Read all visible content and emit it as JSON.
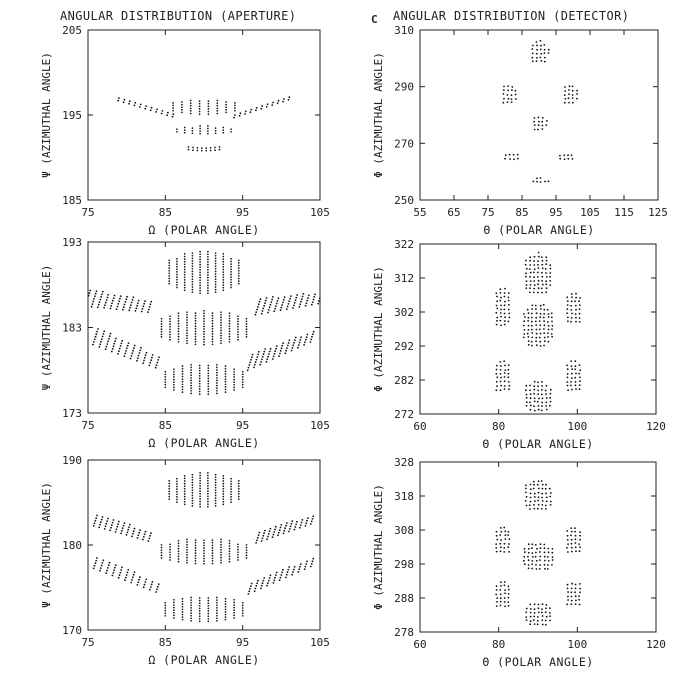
{
  "figure": {
    "left_title": "ANGULAR DISTRIBUTION (APERTURE)",
    "right_title": "ANGULAR DISTRIBUTION (DETECTOR)",
    "panel_letter": "C"
  },
  "chart_data": [
    {
      "type": "scatter",
      "xlabel": "Ω (POLAR ANGLE)",
      "ylabel": "Ψ (AZIMUTHAL ANGLE)",
      "xlim": [
        75,
        105
      ],
      "ylim": [
        185,
        205
      ],
      "xticks": [
        75,
        85,
        95,
        105
      ],
      "yticks": [
        185,
        195,
        205
      ],
      "series": [
        {
          "clusters": [
            {
              "type": "arc",
              "xrange": [
                79,
                86
              ],
              "y_center": 196,
              "y_left": 197,
              "y_right": 195,
              "y_extent": 0.6
            },
            {
              "type": "arc",
              "xrange": [
                94,
                101
              ],
              "y_center": 196,
              "y_left": 195,
              "y_right": 197,
              "y_extent": 0.6
            },
            {
              "type": "bars",
              "xrange": [
                86,
                94
              ],
              "y_center": 196,
              "y_half": 0.9,
              "columns": 8
            },
            {
              "type": "bars",
              "xrange": [
                86.5,
                93.5
              ],
              "y_center": 193.3,
              "y_half": 0.5,
              "columns": 8
            },
            {
              "type": "bars",
              "xrange": [
                88,
                92
              ],
              "y_center": 191.1,
              "y_half": 0.3,
              "columns": 8
            }
          ]
        }
      ]
    },
    {
      "type": "scatter",
      "xlabel": "Θ (POLAR ANGLE)",
      "ylabel": "Φ (AZIMUTHAL ANGLE)",
      "xlim": [
        55,
        125
      ],
      "ylim": [
        250,
        310
      ],
      "xticks": [
        55,
        65,
        75,
        85,
        95,
        105,
        115,
        125
      ],
      "yticks": [
        250,
        270,
        290,
        310
      ],
      "series": [
        {
          "clusters": [
            {
              "type": "blob",
              "center": [
                90,
                302
              ],
              "rx": 3,
              "ry": 4.5
            },
            {
              "type": "blob",
              "center": [
                90,
                277
              ],
              "rx": 2.5,
              "ry": 3.5
            },
            {
              "type": "blob",
              "center": [
                90,
                256.5
              ],
              "rx": 3,
              "ry": 1.5
            },
            {
              "type": "blob",
              "center": [
                81,
                287
              ],
              "rx": 2.5,
              "ry": 4
            },
            {
              "type": "blob",
              "center": [
                99,
                287
              ],
              "rx": 2.5,
              "ry": 4
            },
            {
              "type": "blob",
              "center": [
                82,
                265
              ],
              "rx": 3,
              "ry": 2
            },
            {
              "type": "blob",
              "center": [
                98,
                265
              ],
              "rx": 3,
              "ry": 2
            }
          ]
        }
      ]
    },
    {
      "type": "scatter",
      "xlabel": "Ω (POLAR ANGLE)",
      "ylabel": "Ψ (AZIMUTHAL ANGLE)",
      "xlim": [
        75,
        105
      ],
      "ylim": [
        173,
        193
      ],
      "xticks": [
        75,
        85,
        95,
        105
      ],
      "yticks": [
        173,
        183,
        193
      ],
      "series": [
        {
          "clusters": [
            {
              "type": "bars",
              "xrange": [
                85.5,
                94.5
              ],
              "y_center": 189.5,
              "y_half": 2.5,
              "columns": 10
            },
            {
              "type": "bars",
              "xrange": [
                84.5,
                95.5
              ],
              "y_center": 183,
              "y_half": 2.0,
              "columns": 11
            },
            {
              "type": "bars",
              "xrange": [
                85,
                95
              ],
              "y_center": 177,
              "y_half": 1.8,
              "columns": 10
            },
            {
              "type": "arc",
              "xrange": [
                75,
                83
              ],
              "y_center": 186,
              "y_left": 186.5,
              "y_right": 185.5,
              "y_extent": 2.0
            },
            {
              "type": "arc",
              "xrange": [
                76,
                84
              ],
              "y_center": 180.5,
              "y_left": 182,
              "y_right": 179,
              "y_extent": 2.0
            },
            {
              "type": "arc",
              "xrange": [
                97,
                105
              ],
              "y_center": 186,
              "y_left": 185.5,
              "y_right": 186.5,
              "y_extent": 2.0
            },
            {
              "type": "arc",
              "xrange": [
                96,
                104
              ],
              "y_center": 180.5,
              "y_left": 179,
              "y_right": 182,
              "y_extent": 2.0
            }
          ]
        }
      ]
    },
    {
      "type": "scatter",
      "xlabel": "Θ (POLAR ANGLE)",
      "ylabel": "Φ (AZIMUTHAL ANGLE)",
      "xlim": [
        60,
        120
      ],
      "ylim": [
        272,
        322
      ],
      "xticks": [
        60,
        80,
        100,
        120
      ],
      "yticks": [
        272,
        282,
        292,
        302,
        312,
        322
      ],
      "series": [
        {
          "clusters": [
            {
              "type": "blob",
              "center": [
                90,
                313
              ],
              "rx": 4,
              "ry": 6.5
            },
            {
              "type": "blob",
              "center": [
                90,
                298
              ],
              "rx": 4.5,
              "ry": 7
            },
            {
              "type": "blob",
              "center": [
                90,
                277
              ],
              "rx": 4,
              "ry": 5
            },
            {
              "type": "blob",
              "center": [
                81,
                303
              ],
              "rx": 2.5,
              "ry": 6
            },
            {
              "type": "blob",
              "center": [
                99,
                303
              ],
              "rx": 2.5,
              "ry": 5
            },
            {
              "type": "blob",
              "center": [
                81,
                283
              ],
              "rx": 2.5,
              "ry": 5
            },
            {
              "type": "blob",
              "center": [
                99,
                283
              ],
              "rx": 2.5,
              "ry": 5
            }
          ]
        }
      ]
    },
    {
      "type": "scatter",
      "xlabel": "Ω (POLAR ANGLE)",
      "ylabel": "Ψ (AZIMUTHAL ANGLE)",
      "xlim": [
        75,
        105
      ],
      "ylim": [
        170,
        190
      ],
      "xticks": [
        75,
        85,
        95,
        105
      ],
      "yticks": [
        170,
        180,
        190
      ],
      "series": [
        {
          "clusters": [
            {
              "type": "bars",
              "xrange": [
                85.5,
                94.5
              ],
              "y_center": 186.5,
              "y_half": 2.0,
              "columns": 10
            },
            {
              "type": "bars",
              "xrange": [
                84.5,
                95.5
              ],
              "y_center": 179.3,
              "y_half": 1.5,
              "columns": 11
            },
            {
              "type": "bars",
              "xrange": [
                85,
                95
              ],
              "y_center": 172.5,
              "y_half": 1.5,
              "columns": 10
            },
            {
              "type": "arc",
              "xrange": [
                76,
                83
              ],
              "y_center": 182,
              "y_left": 183,
              "y_right": 181,
              "y_extent": 1.5
            },
            {
              "type": "arc",
              "xrange": [
                76,
                84
              ],
              "y_center": 176.5,
              "y_left": 178,
              "y_right": 175,
              "y_extent": 1.5
            },
            {
              "type": "arc",
              "xrange": [
                97,
                104
              ],
              "y_center": 182,
              "y_left": 181,
              "y_right": 183,
              "y_extent": 1.5
            },
            {
              "type": "arc",
              "xrange": [
                96,
                104
              ],
              "y_center": 176.5,
              "y_left": 175,
              "y_right": 178,
              "y_extent": 1.5
            }
          ]
        }
      ]
    },
    {
      "type": "scatter",
      "xlabel": "Θ (POLAR ANGLE)",
      "ylabel": "Φ (AZIMUTHAL ANGLE)",
      "xlim": [
        60,
        120
      ],
      "ylim": [
        278,
        328
      ],
      "xticks": [
        60,
        80,
        100,
        120
      ],
      "yticks": [
        278,
        288,
        298,
        308,
        318,
        328
      ],
      "series": [
        {
          "clusters": [
            {
              "type": "blob",
              "center": [
                90,
                318
              ],
              "rx": 4,
              "ry": 5
            },
            {
              "type": "blob",
              "center": [
                90,
                300
              ],
              "rx": 4.5,
              "ry": 4.5
            },
            {
              "type": "blob",
              "center": [
                90,
                283
              ],
              "rx": 4,
              "ry": 4
            },
            {
              "type": "blob",
              "center": [
                81,
                305
              ],
              "rx": 2.5,
              "ry": 4.5
            },
            {
              "type": "blob",
              "center": [
                99,
                305
              ],
              "rx": 2.5,
              "ry": 4.5
            },
            {
              "type": "blob",
              "center": [
                81,
                289
              ],
              "rx": 2.5,
              "ry": 4.5
            },
            {
              "type": "blob",
              "center": [
                99,
                289
              ],
              "rx": 2.5,
              "ry": 4
            }
          ]
        }
      ]
    }
  ]
}
